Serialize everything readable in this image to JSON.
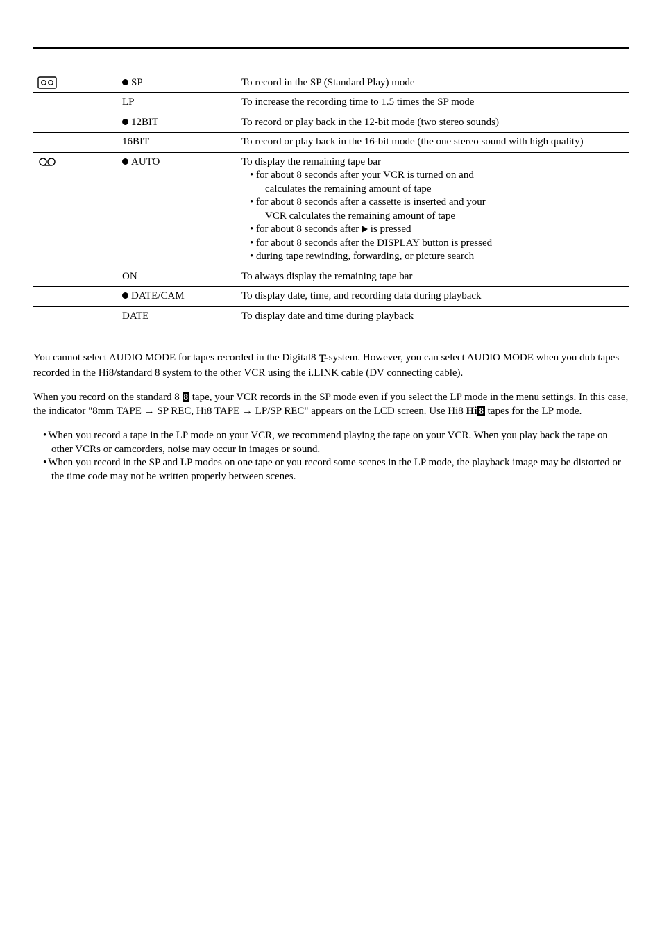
{
  "rows": [
    {
      "icon": "cassette",
      "bullet": true,
      "mode": "SP",
      "meaning": "To record in the SP (Standard Play) mode"
    },
    {
      "icon": "",
      "bullet": false,
      "mode": "LP",
      "meaning": "To increase the recording time to 1.5 times the SP mode"
    },
    {
      "icon": "",
      "bullet": true,
      "mode": "12BIT",
      "meaning": "To record or play back in the 12-bit mode (two stereo sounds)"
    },
    {
      "icon": "",
      "bullet": false,
      "mode": "16BIT",
      "meaning": "To record or play back in the 16-bit mode (the one stereo sound with high quality)"
    },
    {
      "icon": "tape",
      "bullet": true,
      "mode": "AUTO",
      "meaning": "To display the remaining tape bar",
      "sub": [
        {
          "text": "for about 8 seconds after your VCR is turned on and"
        },
        {
          "indent": true,
          "text": "calculates the remaining amount of tape"
        },
        {
          "text": "for about 8 seconds after a cassette is inserted and your"
        },
        {
          "indent": true,
          "text": "VCR calculates the remaining amount of tape"
        },
        {
          "play": true,
          "text_a": "for about 8 seconds after ",
          "text_b": " is pressed"
        },
        {
          "text": "for about 8 seconds after the DISPLAY button is pressed"
        },
        {
          "text": "during tape rewinding, forwarding, or picture search"
        }
      ]
    },
    {
      "icon": "",
      "bullet": false,
      "mode": "ON",
      "meaning": "To always display the remaining tape bar"
    },
    {
      "icon": "",
      "bullet": true,
      "mode": "DATE/CAM",
      "meaning": "To display date, time, and recording data during playback"
    },
    {
      "icon": "",
      "bullet": false,
      "mode": "DATE",
      "meaning": "To display date and time during playback"
    }
  ],
  "note1a": "You cannot select AUDIO MODE for tapes recorded in the Digital8 ",
  "note1b": " system. However, you can select AUDIO MODE when you dub tapes recorded in the Hi8/standard 8 system to the other VCR using the i.LINK cable (DV connecting cable).",
  "note2a": "When you record on the standard 8 ",
  "note2b": " tape, your VCR records in the SP mode even if you select the LP mode in the menu settings. In this case, the indicator \"8mm TAPE → SP REC, Hi8 TAPE → LP/SP REC\" appears on the LCD screen. Use Hi8 ",
  "note2c": " tapes for the LP mode.",
  "bullets": [
    "When you record a tape in the LP mode on your VCR, we recommend playing the tape on your VCR. When you play back the tape on other VCRs or camcorders, noise may occur in images or sound.",
    "When you record in the SP and LP modes on one tape or you record some scenes in the LP mode, the playback image may be distorted or the time code may not be written properly between scenes."
  ]
}
